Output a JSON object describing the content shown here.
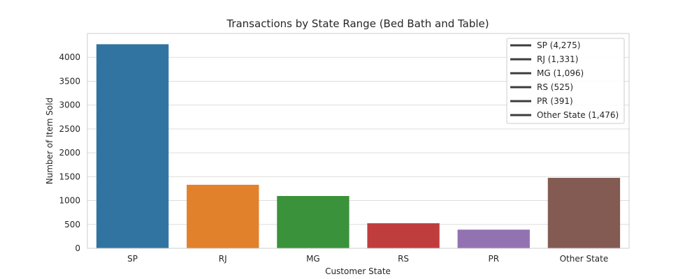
{
  "chart_data": {
    "type": "bar",
    "title": "Transactions by State Range (Bed Bath and Table)",
    "xlabel": "Customer State",
    "ylabel": "Number of Item Sold",
    "categories": [
      "SP",
      "RJ",
      "MG",
      "RS",
      "PR",
      "Other State"
    ],
    "values": [
      4275,
      1331,
      1096,
      525,
      391,
      1476
    ],
    "colors": [
      "#3274a1",
      "#e1812c",
      "#3a923a",
      "#c03d3e",
      "#9372b2",
      "#845b53"
    ],
    "ylim": [
      0,
      4500
    ],
    "yticks": [
      0,
      500,
      1000,
      1500,
      2000,
      2500,
      3000,
      3500,
      4000
    ],
    "grid": true,
    "legend_position": "top-right",
    "legend_color": "#3c3c3c",
    "legend": [
      "SP (4,275)",
      "RJ (1,331)",
      "MG (1,096)",
      "RS (525)",
      "PR (391)",
      "Other State (1,476)"
    ]
  }
}
